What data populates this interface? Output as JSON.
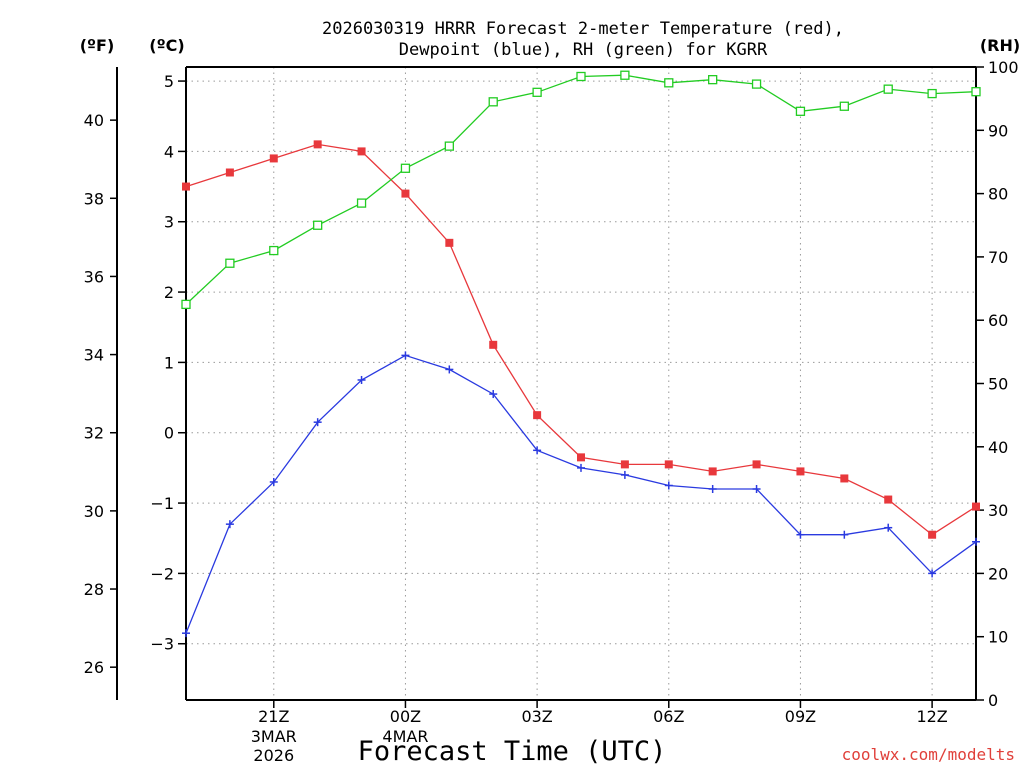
{
  "chart_data": {
    "type": "line",
    "title_line1": "2026030319 HRRR Forecast 2-meter Temperature (red),",
    "title_line2": "Dewpoint (blue), RH (green) for KGRR",
    "xlabel": "Forecast Time (UTC)",
    "credit": "coolwx.com/modelts",
    "units": {
      "f": "(ºF)",
      "c": "(ºC)",
      "rh": "(RH)"
    },
    "x_ticks": [
      {
        "label": "21Z",
        "sub1": "3MAR",
        "sub2": "2026",
        "hour": 21
      },
      {
        "label": "00Z",
        "sub1": "4MAR",
        "sub2": "",
        "hour": 24
      },
      {
        "label": "03Z",
        "sub1": "",
        "sub2": "",
        "hour": 27
      },
      {
        "label": "06Z",
        "sub1": "",
        "sub2": "",
        "hour": 30
      },
      {
        "label": "09Z",
        "sub1": "",
        "sub2": "",
        "hour": 33
      },
      {
        "label": "12Z",
        "sub1": "",
        "sub2": "",
        "hour": 36
      }
    ],
    "x_hours": [
      19,
      20,
      21,
      22,
      23,
      24,
      25,
      26,
      27,
      28,
      29,
      30,
      31,
      32,
      33,
      34,
      35,
      36,
      37
    ],
    "x_range": [
      19,
      37
    ],
    "c_axis": {
      "ylim": [
        -3.8,
        5.2
      ],
      "ticks": [
        -3,
        -2,
        -1,
        0,
        1,
        2,
        3,
        4,
        5
      ]
    },
    "f_axis": {
      "ticks": [
        26,
        28,
        30,
        32,
        34,
        36,
        38,
        40
      ]
    },
    "rh_axis": {
      "ylim": [
        0,
        100
      ],
      "ticks": [
        0,
        10,
        20,
        30,
        40,
        50,
        60,
        70,
        80,
        90,
        100
      ]
    },
    "grid": true,
    "series": [
      {
        "name": "Temperature",
        "axis": "c",
        "color": "#e8383c",
        "marker": "filled-square",
        "values": [
          3.5,
          3.7,
          3.9,
          4.1,
          4.0,
          3.4,
          2.7,
          1.25,
          0.25,
          -0.35,
          -0.45,
          -0.45,
          -0.55,
          -0.45,
          -0.55,
          -0.65,
          -0.95,
          -1.45,
          -1.05
        ]
      },
      {
        "name": "Dewpoint",
        "axis": "c",
        "color": "#2a3ae0",
        "marker": "plus",
        "values": [
          -2.85,
          -1.3,
          -0.7,
          0.15,
          0.75,
          1.1,
          0.9,
          0.55,
          -0.25,
          -0.5,
          -0.6,
          -0.75,
          -0.8,
          -0.8,
          -1.45,
          -1.45,
          -1.35,
          -2.0,
          -1.55
        ]
      },
      {
        "name": "RH",
        "axis": "rh",
        "color": "#22cc22",
        "marker": "open-square",
        "values": [
          62.5,
          69.0,
          71.0,
          75.0,
          78.5,
          84.0,
          87.5,
          94.5,
          96.0,
          98.5,
          98.7,
          97.5,
          98.0,
          97.3,
          93.0,
          93.8,
          96.5,
          95.8,
          96.1
        ]
      }
    ]
  }
}
